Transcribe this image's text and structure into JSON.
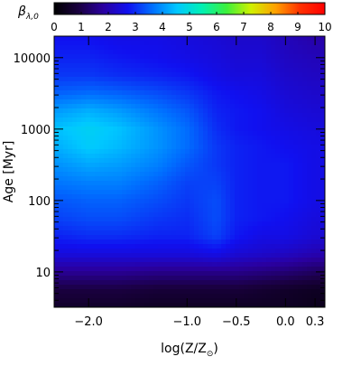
{
  "chart_data": {
    "type": "heatmap",
    "colorbar": {
      "label_symbol": "β",
      "label_subscript": "λ,0",
      "range": [
        0,
        10
      ],
      "ticks": [
        "0",
        "1",
        "2",
        "3",
        "4",
        "5",
        "6",
        "7",
        "8",
        "9",
        "10"
      ],
      "colormap": [
        "#000000",
        "#1a0040",
        "#2a00a0",
        "#1010f0",
        "#0070ff",
        "#00c8ff",
        "#00f0b4",
        "#3cf03c",
        "#d0f000",
        "#ffa000",
        "#ff3000",
        "#ff0000"
      ]
    },
    "xlabel_main": "log(Z/Z",
    "xlabel_sun": "⊙",
    "xlabel_close": ")",
    "ylabel": "Age [Myr]",
    "x_ticks": [
      {
        "value": -2.0,
        "label": "−2.0"
      },
      {
        "value": -1.0,
        "label": "−1.0"
      },
      {
        "value": -0.5,
        "label": "−0.5"
      },
      {
        "value": 0.0,
        "label": "0.0"
      },
      {
        "value": 0.3,
        "label": "0.3"
      }
    ],
    "xlim": [
      -2.35,
      0.4
    ],
    "y_ticks": [
      {
        "value": 10,
        "label": "10"
      },
      {
        "value": 100,
        "label": "100"
      },
      {
        "value": 1000,
        "label": "1000"
      },
      {
        "value": 10000,
        "label": "10000"
      }
    ],
    "ylim": [
      3.2,
      20000
    ],
    "y_scale": "log",
    "grid": false,
    "z_values": {
      "log_age": [
        0.5,
        0.75,
        1.0,
        1.25,
        1.5,
        1.75,
        2.0,
        2.25,
        2.5,
        2.75,
        3.0,
        3.25,
        3.5,
        3.75,
        4.0,
        4.3
      ],
      "log_z": [
        -2.3,
        -2.0,
        -1.7,
        -1.3,
        -1.0,
        -0.7,
        -0.5,
        -0.25,
        0.0,
        0.3
      ],
      "beta": [
        [
          0.6,
          0.6,
          0.6,
          0.5,
          0.5,
          0.5,
          0.5,
          0.5,
          0.5,
          0.4
        ],
        [
          0.9,
          0.9,
          0.9,
          0.8,
          0.8,
          0.8,
          0.8,
          0.7,
          0.6,
          0.5
        ],
        [
          1.7,
          1.7,
          1.7,
          1.6,
          1.6,
          1.6,
          1.6,
          1.5,
          1.4,
          1.2
        ],
        [
          2.5,
          2.5,
          2.5,
          2.5,
          2.5,
          2.6,
          2.4,
          2.3,
          2.2,
          2.0
        ],
        [
          2.9,
          3.0,
          3.0,
          2.9,
          2.9,
          3.2,
          2.8,
          2.6,
          2.6,
          2.4
        ],
        [
          3.2,
          3.3,
          3.3,
          3.1,
          3.0,
          3.3,
          2.9,
          2.8,
          2.7,
          2.5
        ],
        [
          3.4,
          3.5,
          3.5,
          3.3,
          3.1,
          3.3,
          2.9,
          2.8,
          2.8,
          2.6
        ],
        [
          3.7,
          3.8,
          3.8,
          3.5,
          3.2,
          3.2,
          2.9,
          2.8,
          2.8,
          2.6
        ],
        [
          4.0,
          4.2,
          4.1,
          3.8,
          3.4,
          3.1,
          2.9,
          2.8,
          2.8,
          2.6
        ],
        [
          4.3,
          4.6,
          4.4,
          4.0,
          3.6,
          3.1,
          2.9,
          2.8,
          2.7,
          2.6
        ],
        [
          4.5,
          4.7,
          4.5,
          4.0,
          3.6,
          3.0,
          2.8,
          2.7,
          2.6,
          2.5
        ],
        [
          4.1,
          4.3,
          4.1,
          3.7,
          3.4,
          2.9,
          2.8,
          2.7,
          2.5,
          2.4
        ],
        [
          3.5,
          3.6,
          3.5,
          3.3,
          3.1,
          2.8,
          2.7,
          2.6,
          2.4,
          2.3
        ],
        [
          3.1,
          3.1,
          3.0,
          2.9,
          2.8,
          2.6,
          2.5,
          2.5,
          2.3,
          2.2
        ],
        [
          2.9,
          2.9,
          2.8,
          2.7,
          2.6,
          2.5,
          2.4,
          2.4,
          2.2,
          2.1
        ],
        [
          2.7,
          2.7,
          2.6,
          2.6,
          2.5,
          2.4,
          2.3,
          2.3,
          2.1,
          1.9
        ]
      ]
    }
  }
}
